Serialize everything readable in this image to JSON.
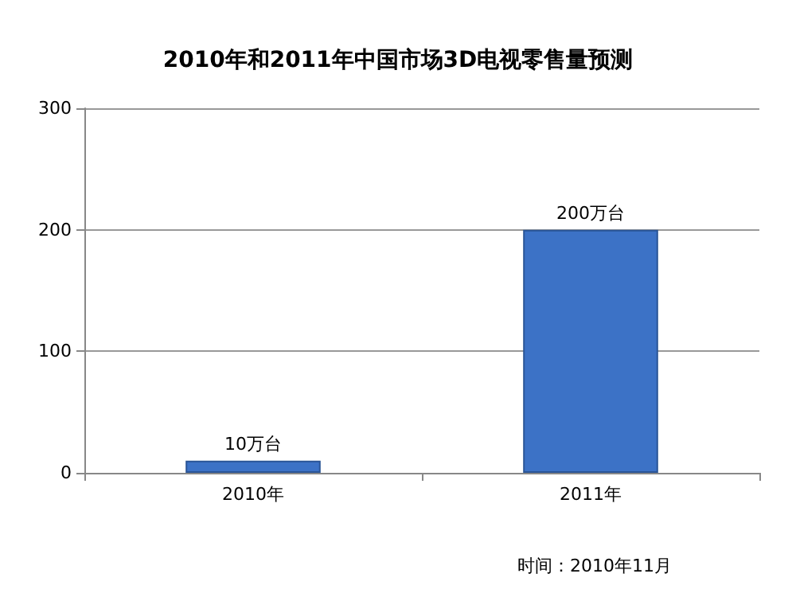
{
  "chart_data": {
    "type": "bar",
    "title": "2010年和2011年中国市场3D电视零售量预测",
    "categories": [
      "2010年",
      "2011年"
    ],
    "values": [
      10,
      200
    ],
    "value_labels": [
      "10万台",
      "200万台"
    ],
    "color": "#3c72c6",
    "ylim": [
      0,
      300
    ],
    "yticks": [
      0,
      100,
      200,
      300
    ],
    "grid": "y",
    "annotations": [
      "时间：2010年11月"
    ]
  }
}
